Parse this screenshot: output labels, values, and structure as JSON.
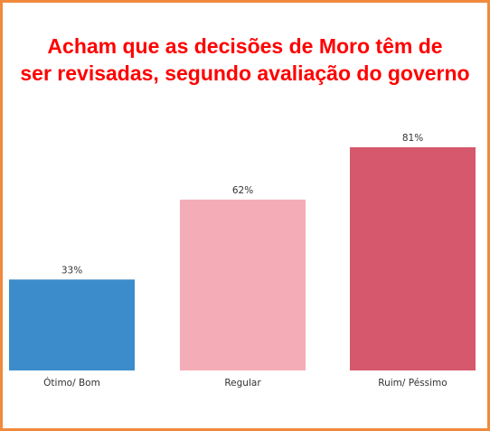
{
  "chart_data": {
    "type": "bar",
    "title_lines": [
      "Acham que as decisões de Moro têm de",
      "ser revisadas, segundo avaliação do governo"
    ],
    "categories": [
      "Ótimo/ Bom",
      "Regular",
      "Ruim/ Péssimo"
    ],
    "values": [
      33,
      62,
      81
    ],
    "value_labels": [
      "33%",
      "62%",
      "81%"
    ],
    "colors": [
      "#3c8ccb",
      "#f4adb6",
      "#d6586c"
    ],
    "ylim": [
      0,
      100
    ],
    "grid": false,
    "legend": "none"
  },
  "theme": {
    "frame_color": "#f08a3c",
    "title_color": "#ff0000"
  }
}
